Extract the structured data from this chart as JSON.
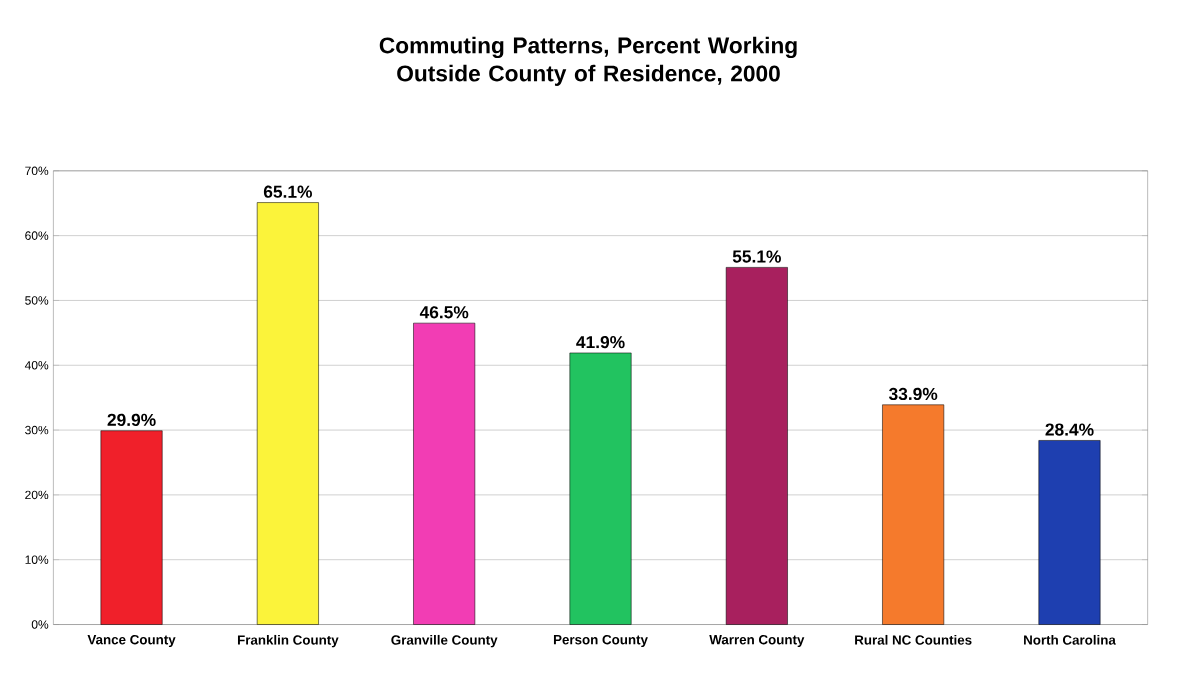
{
  "chart_data": {
    "type": "bar",
    "title": "Commuting Patterns, Percent Working Outside County of Residence, 2000",
    "categories": [
      "Vance County",
      "Franklin County",
      "Granville County",
      "Person County",
      "Warren County",
      "Rural NC Counties",
      "North Carolina"
    ],
    "values": [
      29.9,
      65.1,
      46.5,
      41.9,
      55.1,
      33.9,
      28.4
    ],
    "value_labels": [
      "29.9%",
      "65.1%",
      "46.5%",
      "41.9%",
      "55.1%",
      "33.9%",
      "28.4%"
    ],
    "colors": [
      "#f0202a",
      "#fbf33a",
      "#f23db4",
      "#22c360",
      "#a8205e",
      "#f57a2c",
      "#1e3fb0"
    ],
    "ylim": [
      0,
      70
    ],
    "yticks": [
      {
        "value": 0,
        "label": "0%"
      },
      {
        "value": 10,
        "label": "10%"
      },
      {
        "value": 20,
        "label": "20%"
      },
      {
        "value": 30,
        "label": "30%"
      },
      {
        "value": 40,
        "label": "40%"
      },
      {
        "value": 50,
        "label": "50%"
      },
      {
        "value": 60,
        "label": "60%"
      },
      {
        "value": 70,
        "label": "70%"
      }
    ],
    "grid": "y"
  }
}
